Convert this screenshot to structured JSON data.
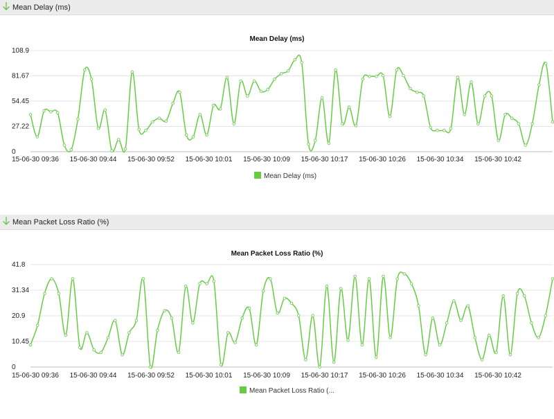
{
  "colors": {
    "series": "#66cc44",
    "point_stroke": "#7fcf66",
    "header_bg": "#ececec"
  },
  "sections": [
    {
      "header": "Mean Delay (ms)",
      "icon": "chevron-down-icon"
    },
    {
      "header": "Mean Packet Loss Ratio (%)",
      "icon": "chevron-down-icon"
    }
  ],
  "chart_data": [
    {
      "type": "line",
      "title": "Mean Delay (ms)",
      "xlabel": "",
      "ylabel": "",
      "ylim": [
        0,
        108.9
      ],
      "yticks": [
        "0",
        "27.22",
        "54.45",
        "81.67",
        "108.9"
      ],
      "xticks": [
        "15-06-30 09:36",
        "15-06-30 09:44",
        "15-06-30 09:52",
        "15-06-30 10:01",
        "15-06-30 10:09",
        "15-06-30 10:17",
        "15-06-30 10:26",
        "15-06-30 10:34",
        "15-06-30 10:42"
      ],
      "legend": "Mean Delay (ms)",
      "grid": true,
      "series": [
        {
          "name": "Mean Delay (ms)",
          "values": [
            40,
            16,
            44,
            43,
            42,
            7,
            2,
            35,
            88,
            78,
            25,
            45,
            1,
            13,
            3,
            86,
            24,
            23,
            32,
            36,
            33,
            52,
            64,
            18,
            16,
            40,
            18,
            50,
            46,
            80,
            30,
            76,
            60,
            76,
            65,
            67,
            78,
            84,
            87,
            99,
            96,
            8,
            12,
            58,
            9,
            88,
            30,
            48,
            28,
            78,
            81,
            81,
            82,
            38,
            88,
            82,
            68,
            64,
            60,
            26,
            23,
            23,
            25,
            80,
            40,
            75,
            30,
            60,
            60,
            12,
            40,
            36,
            30,
            7,
            30,
            72,
            95,
            32
          ]
        }
      ]
    },
    {
      "type": "line",
      "title": "Mean Packet Loss Ratio (%)",
      "xlabel": "",
      "ylabel": "",
      "ylim": [
        0,
        41.8
      ],
      "yticks": [
        "0",
        "10.45",
        "20.9",
        "31.34",
        "41.8"
      ],
      "xticks": [
        "15-06-30 09:36",
        "15-06-30 09:44",
        "15-06-30 09:52",
        "15-06-30 10:01",
        "15-06-30 10:09",
        "15-06-30 10:17",
        "15-06-30 10:26",
        "15-06-30 10:34",
        "15-06-30 10:42"
      ],
      "legend": "Mean Packet Loss Ratio (...",
      "grid": true,
      "series": [
        {
          "name": "Mean Packet Loss Ratio (...",
          "values": [
            9,
            17,
            30,
            36,
            30,
            13,
            36,
            8,
            14,
            7,
            6,
            12,
            19,
            5,
            14,
            19,
            36,
            0,
            15,
            23,
            20,
            6,
            33,
            18,
            34,
            34,
            35,
            1,
            14,
            10,
            20,
            24,
            9,
            31,
            36,
            22,
            28,
            26,
            21,
            3,
            21,
            0,
            33,
            2,
            32,
            11,
            37,
            9,
            36,
            4,
            37,
            12,
            36,
            38,
            34,
            25,
            5,
            20,
            9,
            18,
            27,
            19,
            25,
            12,
            3,
            13,
            6,
            29,
            5,
            30,
            29,
            18,
            12,
            21,
            36
          ]
        }
      ]
    }
  ]
}
